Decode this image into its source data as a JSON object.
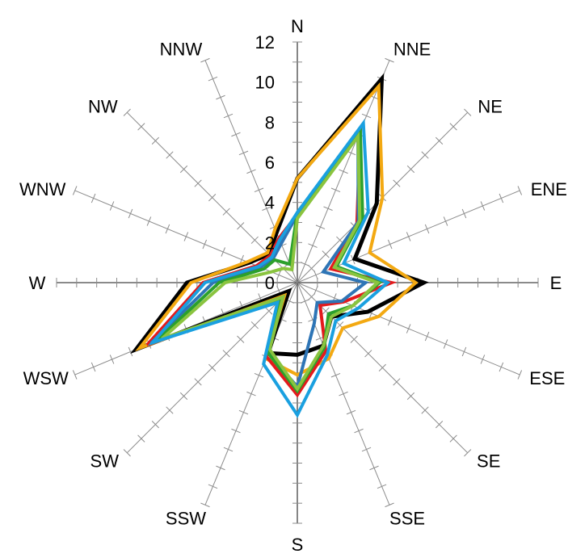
{
  "chart_data": {
    "type": "radar",
    "title": "",
    "directions": [
      "N",
      "NNE",
      "NE",
      "ENE",
      "E",
      "ESE",
      "SE",
      "SSE",
      "S",
      "SSW",
      "SW",
      "WSW",
      "W",
      "WNW",
      "NW",
      "NNW"
    ],
    "radial_ticks": [
      "0",
      "2",
      "4",
      "6",
      "8",
      "10",
      "12"
    ],
    "rlim": [
      0,
      12
    ],
    "grid": true,
    "legend": "none",
    "series": [
      {
        "color": "#000000",
        "values": [
          5.2,
          11.0,
          5.6,
          3.1,
          6.3,
          3.8,
          2.4,
          3.4,
          3.6,
          3.8,
          0.6,
          8.7,
          5.5,
          2.6,
          2.0,
          2.7
        ]
      },
      {
        "color": "#f3a912",
        "values": [
          5.2,
          10.6,
          6.0,
          3.9,
          5.9,
          4.4,
          3.2,
          4.1,
          4.6,
          4.1,
          0.9,
          8.5,
          5.3,
          2.7,
          2.1,
          2.9
        ]
      },
      {
        "color": "#e31a1c",
        "values": [
          3.4,
          8.2,
          4.2,
          1.8,
          4.7,
          2.5,
          1.6,
          3.7,
          5.6,
          4.0,
          1.0,
          8.1,
          4.7,
          2.2,
          1.9,
          2.4
        ]
      },
      {
        "color": "#2e75b6",
        "values": [
          3.4,
          7.9,
          4.3,
          1.4,
          3.4,
          2.4,
          1.4,
          2.2,
          5.2,
          3.8,
          1.1,
          7.9,
          4.2,
          2.0,
          1.7,
          2.1
        ]
      },
      {
        "color": "#2ca02c",
        "values": [
          3.5,
          8.2,
          4.6,
          2.1,
          4.1,
          3.0,
          2.2,
          3.5,
          5.4,
          3.8,
          1.2,
          7.6,
          3.9,
          1.8,
          1.6,
          1.0
        ]
      },
      {
        "color": "#8ac43f",
        "values": [
          3.2,
          7.9,
          4.4,
          2.0,
          4.0,
          3.0,
          2.4,
          3.4,
          5.3,
          3.6,
          1.0,
          7.3,
          3.6,
          1.4,
          1.0,
          0.7
        ]
      },
      {
        "color": "#1aa0e0",
        "values": [
          3.5,
          8.6,
          5.0,
          2.5,
          4.5,
          3.3,
          2.7,
          3.9,
          6.6,
          4.4,
          1.4,
          7.8,
          4.6,
          2.1,
          1.8,
          2.3
        ]
      }
    ]
  }
}
